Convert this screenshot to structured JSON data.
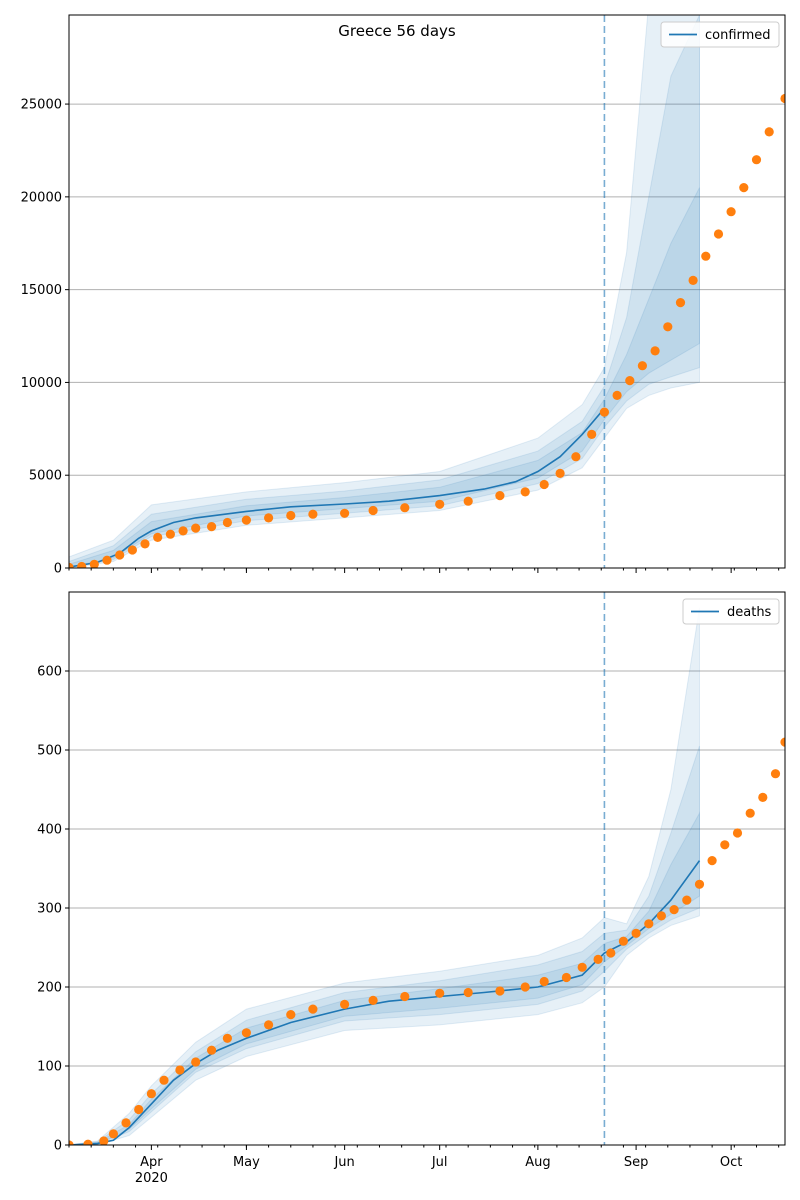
{
  "title": "Greece 56 days",
  "colors": {
    "model": "#1f77b4",
    "observed": "#ff7f0e",
    "band": "#1f77b4",
    "grid": "#b0b0b0"
  },
  "x_ticks": [
    {
      "label": "Apr",
      "sub": "2020",
      "date": "2020-04-01"
    },
    {
      "label": "May",
      "sub": "",
      "date": "2020-05-01"
    },
    {
      "label": "Jun",
      "sub": "",
      "date": "2020-06-01"
    },
    {
      "label": "Jul",
      "sub": "",
      "date": "2020-07-01"
    },
    {
      "label": "Aug",
      "sub": "",
      "date": "2020-08-01"
    },
    {
      "label": "Sep",
      "sub": "",
      "date": "2020-09-01"
    },
    {
      "label": "Oct",
      "sub": "",
      "date": "2020-10-01"
    }
  ],
  "chart_data": [
    {
      "type": "line",
      "title": "Greece 56 days",
      "legend": {
        "label": "confirmed",
        "position": "top-right"
      },
      "xlim": [
        "2020-03-06",
        "2020-10-18"
      ],
      "ylim": [
        0,
        29800
      ],
      "y_ticks": [
        0,
        5000,
        10000,
        15000,
        20000,
        25000
      ],
      "grid": "horizontal",
      "forecast_start": "2020-08-22",
      "forecast_end": "2020-09-21",
      "model": {
        "x": [
          "2020-03-06",
          "2020-03-15",
          "2020-03-22",
          "2020-03-28",
          "2020-04-01",
          "2020-04-08",
          "2020-04-15",
          "2020-05-01",
          "2020-05-15",
          "2020-06-01",
          "2020-06-15",
          "2020-07-01",
          "2020-07-15",
          "2020-07-25",
          "2020-08-01",
          "2020-08-08",
          "2020-08-15",
          "2020-08-22"
        ],
        "y": [
          50,
          300,
          800,
          1600,
          2000,
          2450,
          2700,
          3050,
          3300,
          3450,
          3600,
          3900,
          4250,
          4650,
          5200,
          6000,
          7200,
          8600
        ]
      },
      "bands": [
        {
          "x": [
            "2020-03-06",
            "2020-03-20",
            "2020-04-01",
            "2020-05-01",
            "2020-06-01",
            "2020-07-01",
            "2020-08-01",
            "2020-08-15",
            "2020-08-22",
            "2020-08-29",
            "2020-09-05",
            "2020-09-12",
            "2020-09-21"
          ],
          "lower": [
            0,
            350,
            1500,
            2300,
            2700,
            3100,
            4200,
            5400,
            7000,
            8600,
            9300,
            9700,
            10000
          ],
          "upper": [
            600,
            1500,
            3400,
            4100,
            4600,
            5200,
            7000,
            8800,
            10800,
            17000,
            30500,
            31000,
            31000
          ]
        },
        {
          "x": [
            "2020-03-06",
            "2020-03-20",
            "2020-04-01",
            "2020-05-01",
            "2020-06-01",
            "2020-07-01",
            "2020-08-01",
            "2020-08-15",
            "2020-08-22",
            "2020-08-29",
            "2020-09-05",
            "2020-09-12",
            "2020-09-21"
          ],
          "lower": [
            20,
            450,
            1700,
            2550,
            2950,
            3350,
            4550,
            5900,
            7600,
            9000,
            9900,
            10300,
            10800
          ],
          "upper": [
            350,
            1200,
            2900,
            3700,
            4150,
            4750,
            6300,
            7900,
            9800,
            13500,
            20000,
            26500,
            29800
          ]
        },
        {
          "x": [
            "2020-03-06",
            "2020-03-20",
            "2020-04-01",
            "2020-05-01",
            "2020-06-01",
            "2020-07-01",
            "2020-08-01",
            "2020-08-15",
            "2020-08-22",
            "2020-08-29",
            "2020-09-05",
            "2020-09-12",
            "2020-09-21"
          ],
          "lower": [
            30,
            550,
            1850,
            2800,
            3200,
            3600,
            4850,
            6300,
            8000,
            9500,
            10500,
            11200,
            12100
          ],
          "upper": [
            200,
            950,
            2500,
            3350,
            3800,
            4350,
            5800,
            7300,
            9100,
            11500,
            14500,
            17500,
            20500
          ]
        }
      ],
      "observed": {
        "x": [
          "2020-03-06",
          "2020-03-10",
          "2020-03-14",
          "2020-03-18",
          "2020-03-22",
          "2020-03-26",
          "2020-03-30",
          "2020-04-03",
          "2020-04-07",
          "2020-04-11",
          "2020-04-15",
          "2020-04-20",
          "2020-04-25",
          "2020-05-01",
          "2020-05-08",
          "2020-05-15",
          "2020-05-22",
          "2020-06-01",
          "2020-06-10",
          "2020-06-20",
          "2020-07-01",
          "2020-07-10",
          "2020-07-20",
          "2020-07-28",
          "2020-08-03",
          "2020-08-08",
          "2020-08-13",
          "2020-08-18",
          "2020-08-22",
          "2020-08-26",
          "2020-08-30",
          "2020-09-03",
          "2020-09-07",
          "2020-09-11",
          "2020-09-15",
          "2020-09-19",
          "2020-09-23",
          "2020-09-27",
          "2020-10-01",
          "2020-10-05",
          "2020-10-09",
          "2020-10-13",
          "2020-10-18"
        ],
        "y": [
          30,
          80,
          200,
          420,
          700,
          970,
          1300,
          1650,
          1820,
          2000,
          2150,
          2230,
          2450,
          2580,
          2700,
          2830,
          2900,
          2950,
          3100,
          3250,
          3430,
          3600,
          3900,
          4100,
          4500,
          5100,
          6000,
          7200,
          8400,
          9300,
          10100,
          10900,
          11700,
          13000,
          14300,
          15500,
          16800,
          18000,
          19200,
          20500,
          22000,
          23500,
          25300
        ]
      }
    },
    {
      "type": "line",
      "title": "",
      "legend": {
        "label": "deaths",
        "position": "top-right"
      },
      "xlim": [
        "2020-03-06",
        "2020-10-18"
      ],
      "ylim": [
        0,
        700
      ],
      "y_ticks": [
        0,
        100,
        200,
        300,
        400,
        500,
        600
      ],
      "grid": "horizontal",
      "forecast_start": "2020-08-22",
      "forecast_end": "2020-09-21",
      "model": {
        "x": [
          "2020-03-06",
          "2020-03-15",
          "2020-03-20",
          "2020-03-25",
          "2020-04-01",
          "2020-04-08",
          "2020-04-15",
          "2020-04-22",
          "2020-05-01",
          "2020-05-15",
          "2020-06-01",
          "2020-06-15",
          "2020-07-01",
          "2020-07-15",
          "2020-08-01",
          "2020-08-15",
          "2020-08-22",
          "2020-08-29",
          "2020-09-05",
          "2020-09-12",
          "2020-09-21"
        ],
        "y": [
          0,
          2,
          6,
          22,
          52,
          82,
          103,
          120,
          135,
          155,
          172,
          182,
          188,
          193,
          200,
          215,
          243,
          257,
          280,
          310,
          360
        ]
      },
      "bands": [
        {
          "x": [
            "2020-03-06",
            "2020-03-15",
            "2020-03-25",
            "2020-04-01",
            "2020-04-15",
            "2020-05-01",
            "2020-06-01",
            "2020-07-01",
            "2020-08-01",
            "2020-08-15",
            "2020-08-22",
            "2020-08-29",
            "2020-09-05",
            "2020-09-12",
            "2020-09-21"
          ],
          "lower": [
            0,
            0,
            12,
            35,
            82,
            112,
            145,
            152,
            165,
            180,
            200,
            240,
            262,
            278,
            290
          ],
          "upper": [
            0,
            5,
            40,
            75,
            130,
            172,
            205,
            220,
            240,
            262,
            288,
            280,
            340,
            450,
            680
          ]
        },
        {
          "x": [
            "2020-03-06",
            "2020-03-15",
            "2020-03-25",
            "2020-04-01",
            "2020-04-15",
            "2020-05-01",
            "2020-06-01",
            "2020-07-01",
            "2020-08-01",
            "2020-08-15",
            "2020-08-22",
            "2020-08-29",
            "2020-09-05",
            "2020-09-12",
            "2020-09-21"
          ],
          "lower": [
            0,
            1,
            17,
            42,
            92,
            122,
            157,
            165,
            178,
            195,
            220,
            248,
            268,
            285,
            300
          ],
          "upper": [
            0,
            4,
            32,
            65,
            118,
            158,
            193,
            208,
            228,
            245,
            268,
            272,
            315,
            395,
            505
          ]
        },
        {
          "x": [
            "2020-03-06",
            "2020-03-15",
            "2020-03-25",
            "2020-04-01",
            "2020-04-15",
            "2020-05-01",
            "2020-06-01",
            "2020-07-01",
            "2020-08-01",
            "2020-08-15",
            "2020-08-22",
            "2020-08-29",
            "2020-09-05",
            "2020-09-12",
            "2020-09-21"
          ],
          "lower": [
            0,
            1,
            20,
            46,
            96,
            128,
            163,
            173,
            186,
            203,
            232,
            252,
            274,
            292,
            315
          ],
          "upper": [
            0,
            3,
            26,
            58,
            110,
            148,
            183,
            198,
            215,
            230,
            255,
            264,
            296,
            355,
            420
          ]
        }
      ],
      "observed": {
        "x": [
          "2020-03-06",
          "2020-03-12",
          "2020-03-17",
          "2020-03-20",
          "2020-03-24",
          "2020-03-28",
          "2020-04-01",
          "2020-04-05",
          "2020-04-10",
          "2020-04-15",
          "2020-04-20",
          "2020-04-25",
          "2020-05-01",
          "2020-05-08",
          "2020-05-15",
          "2020-05-22",
          "2020-06-01",
          "2020-06-10",
          "2020-06-20",
          "2020-07-01",
          "2020-07-10",
          "2020-07-20",
          "2020-07-28",
          "2020-08-03",
          "2020-08-10",
          "2020-08-15",
          "2020-08-20",
          "2020-08-24",
          "2020-08-28",
          "2020-09-01",
          "2020-09-05",
          "2020-09-09",
          "2020-09-13",
          "2020-09-17",
          "2020-09-21",
          "2020-09-25",
          "2020-09-29",
          "2020-10-03",
          "2020-10-07",
          "2020-10-11",
          "2020-10-15",
          "2020-10-18"
        ],
        "y": [
          0,
          1,
          5,
          14,
          28,
          45,
          65,
          82,
          95,
          105,
          120,
          135,
          142,
          152,
          165,
          172,
          178,
          183,
          188,
          192,
          193,
          195,
          200,
          207,
          212,
          225,
          235,
          243,
          258,
          268,
          280,
          290,
          298,
          310,
          330,
          360,
          380,
          395,
          420,
          440,
          470,
          510
        ]
      }
    }
  ]
}
